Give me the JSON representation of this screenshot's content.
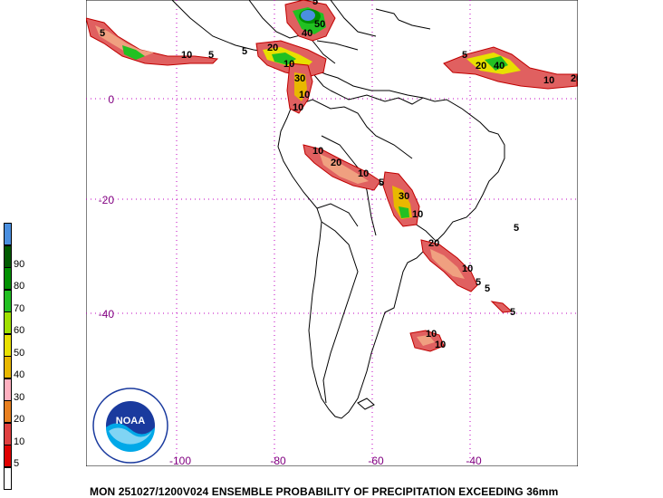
{
  "map": {
    "lat_labels": [
      {
        "text": "0",
        "lat": 0
      },
      {
        "text": "-20",
        "lat": -20
      },
      {
        "text": "-40",
        "lat": -40
      }
    ],
    "lon_labels": [
      {
        "text": "-100",
        "lon": -100
      },
      {
        "text": "-80",
        "lon": -80
      },
      {
        "text": "-60",
        "lon": -60
      },
      {
        "text": "-40",
        "lon": -40
      }
    ],
    "gridline_color": "#c000c0",
    "coast_color": "#000000",
    "contour_labels": [
      "5",
      "10",
      "20",
      "30",
      "40",
      "50",
      "60",
      "70",
      "80",
      "90"
    ]
  },
  "legend": {
    "items": [
      {
        "label": "",
        "color": "#4a8fe0"
      },
      {
        "label": "90",
        "color": "#005a00"
      },
      {
        "label": "80",
        "color": "#009000"
      },
      {
        "label": "70",
        "color": "#22c022"
      },
      {
        "label": "60",
        "color": "#a0e000"
      },
      {
        "label": "50",
        "color": "#e8e000"
      },
      {
        "label": "40",
        "color": "#e8b800"
      },
      {
        "label": "30",
        "color": "#ffb0c0"
      },
      {
        "label": "20",
        "color": "#e88020"
      },
      {
        "label": "10",
        "color": "#e04040"
      },
      {
        "label": "5",
        "color": "#e00000"
      },
      {
        "label": "",
        "color": "#ffffff"
      }
    ]
  },
  "caption": "MON 251027/1200V024  ENSEMBLE PROBABILITY OF PRECIPITATION EXCEEDING 36mm",
  "logo": {
    "text": "NOAA"
  }
}
